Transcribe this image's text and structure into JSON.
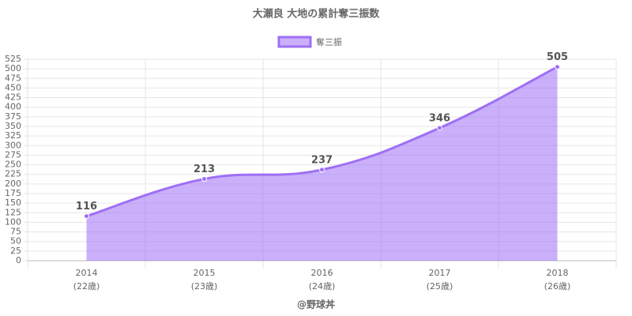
{
  "chart_data": {
    "type": "line",
    "title": "大瀬良 大地の累計奪三振数",
    "categories": [
      [
        "2014",
        "(22歳)"
      ],
      [
        "2015",
        "(23歳)"
      ],
      [
        "2016",
        "(24歳)"
      ],
      [
        "2017",
        "(25歳)"
      ],
      [
        "2018",
        "(26歳)"
      ]
    ],
    "series": [
      {
        "name": "奪三振",
        "color": "#9f6ff5",
        "values": [
          116,
          213,
          237,
          346,
          505
        ]
      }
    ],
    "ylim": [
      0,
      525
    ],
    "yticks": [
      0,
      25,
      50,
      75,
      100,
      125,
      150,
      175,
      200,
      225,
      250,
      275,
      300,
      325,
      350,
      375,
      400,
      425,
      450,
      475,
      500,
      525
    ],
    "grid": true,
    "legend": "top",
    "fill": true,
    "footer": "@野球丼"
  }
}
